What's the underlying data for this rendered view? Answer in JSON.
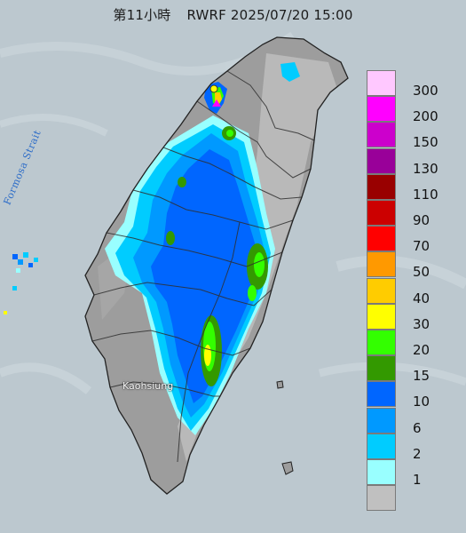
{
  "title": {
    "hour_label": "第11小時",
    "model": "RWRF",
    "datetime": "2025/07/20 15:00"
  },
  "map": {
    "strait_label": "Formosa Strait",
    "city_label": "Kaohsiung",
    "colors": {
      "sea": "#bcc8cf",
      "land": "#9d9d9d",
      "mountain": "#b8b8b8",
      "boundary": "#3a3a3a"
    }
  },
  "legend": {
    "items": [
      {
        "label": "300",
        "color": "#ffc8ff"
      },
      {
        "label": "200",
        "color": "#ff00ff"
      },
      {
        "label": "150",
        "color": "#cc00cc"
      },
      {
        "label": "130",
        "color": "#990099"
      },
      {
        "label": "110",
        "color": "#990000"
      },
      {
        "label": "90",
        "color": "#cc0000"
      },
      {
        "label": "70",
        "color": "#ff0000"
      },
      {
        "label": "50",
        "color": "#ff9900"
      },
      {
        "label": "40",
        "color": "#ffcc00"
      },
      {
        "label": "30",
        "color": "#ffff00"
      },
      {
        "label": "20",
        "color": "#33ff00"
      },
      {
        "label": "15",
        "color": "#339900"
      },
      {
        "label": "10",
        "color": "#0066ff"
      },
      {
        "label": "6",
        "color": "#0099ff"
      },
      {
        "label": "2",
        "color": "#00ccff"
      },
      {
        "label": "1",
        "color": "#99ffff"
      },
      {
        "label": "",
        "color": "#c0c0c0"
      }
    ]
  }
}
